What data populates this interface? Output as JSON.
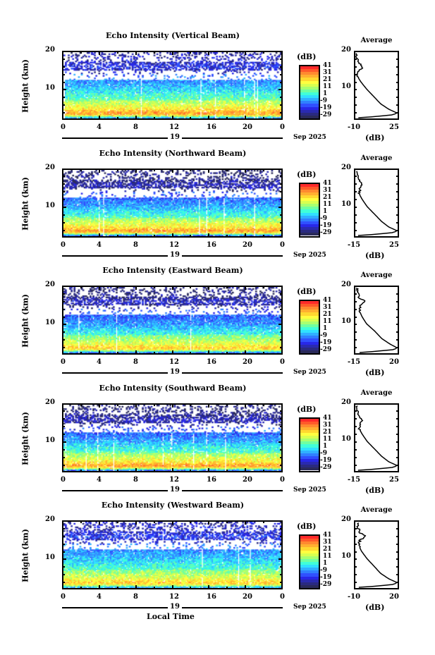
{
  "chart_data": {
    "type": "heatmap",
    "xlabel": "Local Time",
    "ylabel": "Height (km)",
    "xticks": [
      "0",
      "4",
      "8",
      "12",
      "16",
      "20",
      "0"
    ],
    "xlim": [
      0,
      24
    ],
    "ylim": [
      2,
      20
    ],
    "yticks": [
      "20",
      "10"
    ],
    "date_day": "19",
    "date_month": "Sep 2025",
    "colorbar": {
      "label": "(dB)",
      "ticks": [
        "41",
        "31",
        "21",
        "11",
        "1",
        "-9",
        "-19",
        "-29"
      ],
      "range": [
        -29,
        41
      ],
      "colors": [
        "#ff2a2a",
        "#ff5a2a",
        "#ff8a30",
        "#ffb030",
        "#ffd830",
        "#ffff40",
        "#d8ff50",
        "#a8ff70",
        "#70ffa0",
        "#40ffd8",
        "#30e0ff",
        "#30b0ff",
        "#3080ff",
        "#3050ff",
        "#2828e8",
        "#2a2ab0",
        "#2a2a80",
        "#2a2a5a"
      ]
    },
    "panels": [
      {
        "title": "Echo Intensity (Vertical Beam)",
        "avg_title": "Average",
        "avg_xlabel": "(dB)",
        "avg_xticks": [
          "-10",
          "25"
        ],
        "avg_xlim": [
          -10,
          25
        ],
        "avg_profile": {
          "height": [
            2.2,
            2.6,
            3,
            3.5,
            4.5,
            6,
            8,
            10,
            12,
            13.5,
            15,
            16,
            17,
            18,
            19.5
          ],
          "db": [
            -8,
            10,
            22,
            25,
            18,
            11,
            5,
            -1,
            -6,
            -9,
            -8,
            -4,
            -7,
            -9,
            -10
          ]
        }
      },
      {
        "title": "Echo Intensity (Northward Beam)",
        "avg_title": "Average",
        "avg_xlabel": "(dB)",
        "avg_xticks": [
          "-15",
          "25"
        ],
        "avg_xlim": [
          -15,
          25
        ],
        "avg_profile": {
          "height": [
            2.2,
            2.6,
            3,
            3.5,
            4.5,
            6,
            8,
            10,
            12,
            13.5,
            15,
            16,
            17,
            18,
            19.5
          ],
          "db": [
            -13,
            8,
            22,
            25,
            17,
            10,
            3,
            -4,
            -9,
            -12,
            -11,
            -9,
            -12,
            -13,
            -14
          ]
        }
      },
      {
        "title": "Echo Intensity (Eastward Beam)",
        "avg_title": "Average",
        "avg_xlabel": "(dB)",
        "avg_xticks": [
          "-15",
          "20"
        ],
        "avg_xlim": [
          -15,
          20
        ],
        "avg_profile": {
          "height": [
            2.2,
            2.6,
            3,
            3.5,
            4.5,
            6,
            8,
            10,
            12,
            13.5,
            15,
            16,
            17,
            18,
            19.5
          ],
          "db": [
            -12,
            5,
            18,
            20,
            14,
            7,
            1,
            -6,
            -10,
            -12,
            -11,
            -7,
            -12,
            -13,
            -14
          ]
        }
      },
      {
        "title": "Echo Intensity (Southward Beam)",
        "avg_title": "Average",
        "avg_xlabel": "(dB)",
        "avg_xticks": [
          "-15",
          "25"
        ],
        "avg_xlim": [
          -15,
          25
        ],
        "avg_profile": {
          "height": [
            2.2,
            2.6,
            3,
            3.5,
            4.5,
            6,
            8,
            10,
            12,
            13.5,
            15,
            16,
            17,
            18,
            19.5
          ],
          "db": [
            -13,
            8,
            22,
            25,
            17,
            10,
            3,
            -4,
            -9,
            -12,
            -11,
            -9,
            -12,
            -13,
            -14
          ]
        }
      },
      {
        "title": "Echo Intensity (Westward Beam)",
        "avg_title": "Average",
        "avg_xlabel": "(dB)",
        "avg_xticks": [
          "-10",
          "20"
        ],
        "avg_xlim": [
          -10,
          20
        ],
        "avg_profile": {
          "height": [
            2.2,
            2.6,
            3,
            3.5,
            4.5,
            6,
            8,
            10,
            12,
            13.5,
            15,
            16,
            17,
            18,
            19.5
          ],
          "db": [
            -8,
            8,
            18,
            20,
            14,
            8,
            3,
            -2,
            -6,
            -8,
            -7,
            -3,
            -7,
            -8,
            -9
          ]
        }
      }
    ]
  }
}
